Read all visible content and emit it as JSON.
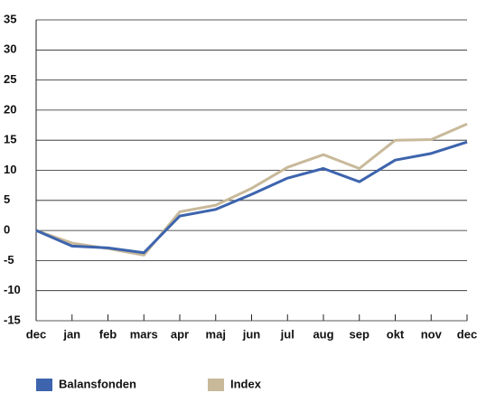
{
  "chart_data": {
    "type": "line",
    "categories": [
      "dec",
      "jan",
      "feb",
      "mars",
      "apr",
      "maj",
      "jun",
      "jul",
      "aug",
      "sep",
      "okt",
      "nov",
      "dec"
    ],
    "series": [
      {
        "name": "Balansfonden",
        "color": "#3d64ad",
        "values": [
          0,
          -2.6,
          -2.9,
          -3.7,
          2.4,
          3.5,
          6.0,
          8.7,
          10.3,
          8.1,
          11.7,
          12.8,
          14.7
        ]
      },
      {
        "name": "Index",
        "color": "#c8b99a",
        "values": [
          0,
          -2.1,
          -3.0,
          -4.1,
          3.1,
          4.2,
          7.0,
          10.5,
          12.6,
          10.3,
          15.0,
          15.1,
          17.7
        ]
      }
    ],
    "ylim": [
      -15,
      35
    ],
    "yticks": [
      -15,
      -10,
      -5,
      0,
      5,
      10,
      15,
      20,
      25,
      30,
      35
    ],
    "grid": true,
    "legend": "bottom"
  }
}
